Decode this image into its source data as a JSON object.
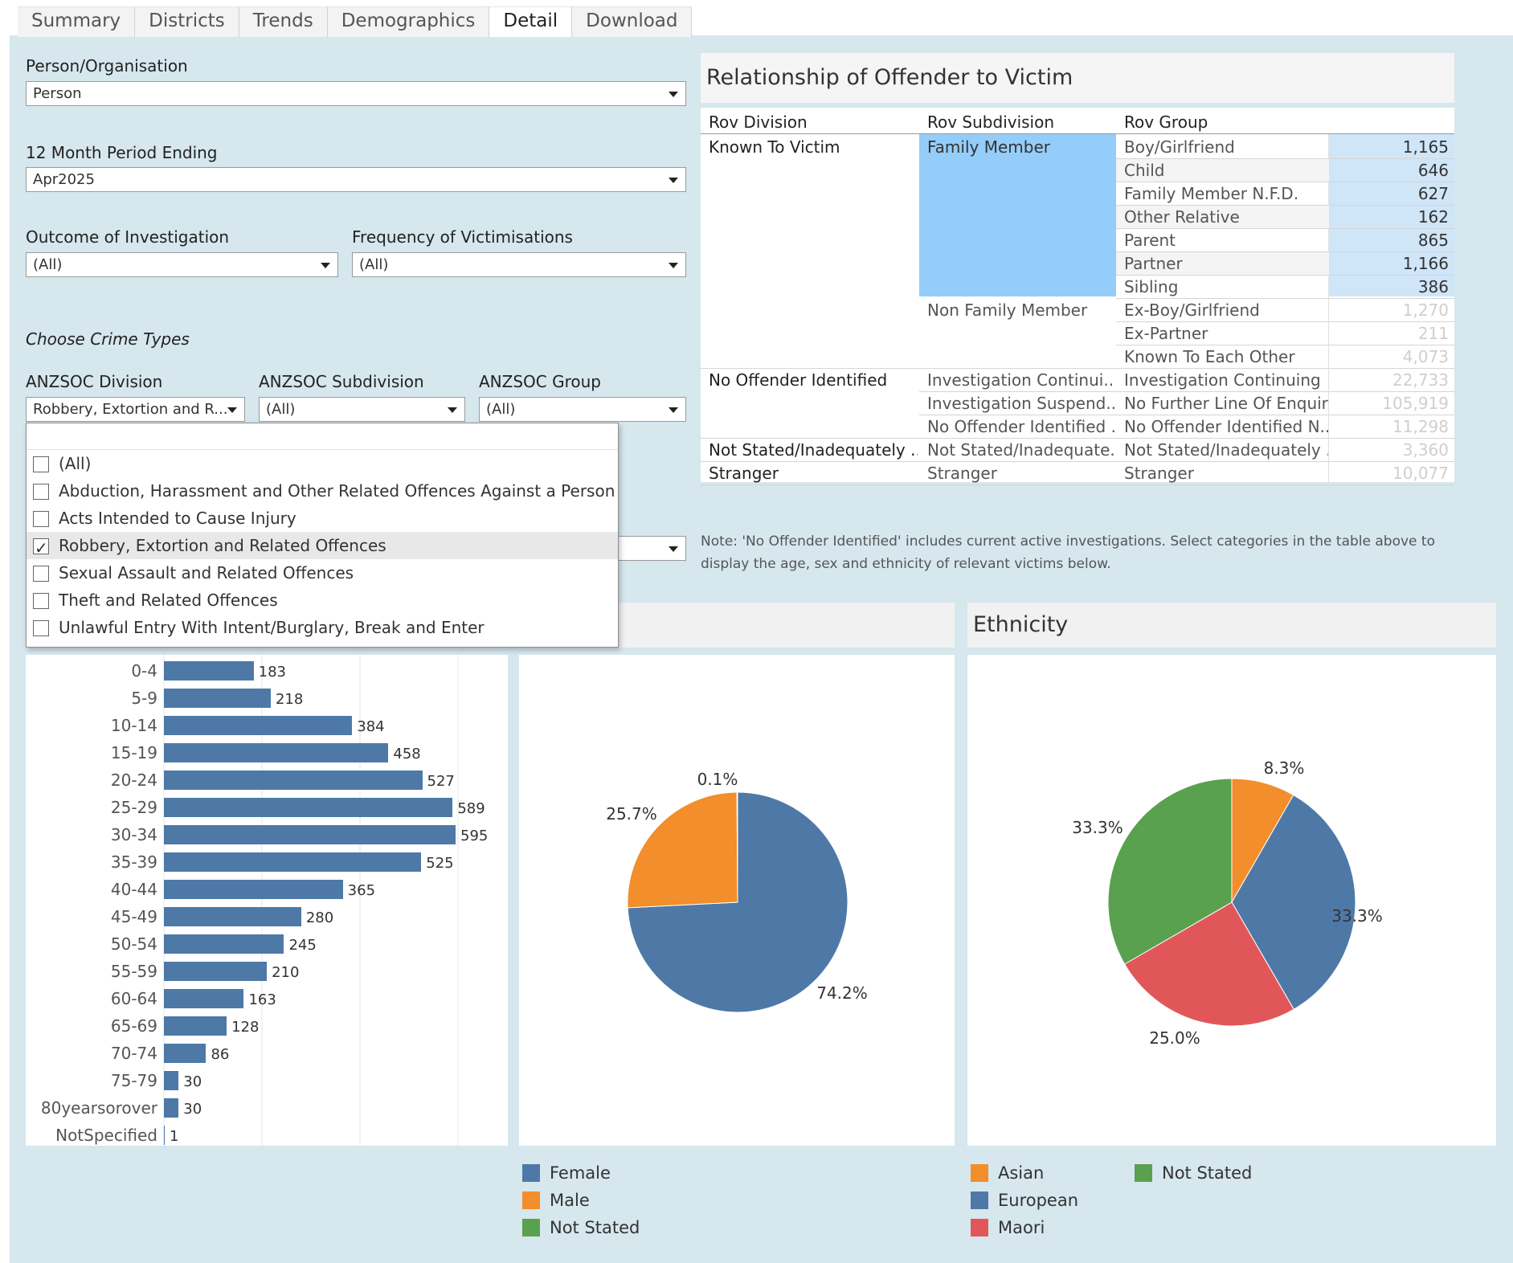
{
  "tabs": [
    "Summary",
    "Districts",
    "Trends",
    "Demographics",
    "Detail",
    "Download"
  ],
  "active_tab": "Detail",
  "filters": {
    "person_org": {
      "label": "Person/Organisation",
      "value": "Person"
    },
    "period": {
      "label": "12 Month Period Ending",
      "value": "Apr2025"
    },
    "outcome": {
      "label": "Outcome of Investigation",
      "value": "(All)"
    },
    "frequency": {
      "label": "Frequency of Victimisations",
      "value": "(All)"
    },
    "choose_crime_types": "Choose Crime Types",
    "division": {
      "label": "ANZSOC Division",
      "value": "Robbery, Extortion and R..."
    },
    "subdivision": {
      "label": "ANZSOC Subdivision",
      "value": "(All)"
    },
    "group": {
      "label": "ANZSOC Group",
      "value": "(All)"
    }
  },
  "division_options": [
    {
      "label": "(All)",
      "checked": false
    },
    {
      "label": "Abduction, Harassment and Other Related Offences Against a Person",
      "checked": false
    },
    {
      "label": "Acts Intended to Cause Injury",
      "checked": false
    },
    {
      "label": "Robbery, Extortion and Related Offences",
      "checked": true
    },
    {
      "label": "Sexual Assault and Related Offences",
      "checked": false
    },
    {
      "label": "Theft and Related Offences",
      "checked": false
    },
    {
      "label": "Unlawful Entry With Intent/Burglary, Break and Enter",
      "checked": false
    }
  ],
  "rov": {
    "title": "Relationship of Offender to Victim",
    "headers": [
      "Rov Division",
      "Rov Subdivision",
      "Rov Group"
    ],
    "divisions": [
      "Known To Victim",
      "No Offender Identified",
      "Not Stated/Inadequately ..",
      "Stranger"
    ],
    "subdivisions": [
      "Family Member",
      "Non Family Member",
      "Investigation Continui..",
      "Investigation Suspend..",
      "No Offender Identified ..",
      "Not Stated/Inadequate..",
      "Stranger"
    ],
    "rows": [
      {
        "group": "Boy/Girlfriend",
        "value": "1,165"
      },
      {
        "group": "Child",
        "value": "646"
      },
      {
        "group": "Family Member N.F.D.",
        "value": "627"
      },
      {
        "group": "Other Relative",
        "value": "162"
      },
      {
        "group": "Parent",
        "value": "865"
      },
      {
        "group": "Partner",
        "value": "1,166"
      },
      {
        "group": "Sibling",
        "value": "386"
      },
      {
        "group": "Ex-Boy/Girlfriend",
        "value": "1,270"
      },
      {
        "group": "Ex-Partner",
        "value": "211"
      },
      {
        "group": "Known To Each Other",
        "value": "4,073"
      },
      {
        "group": "Investigation Continuing",
        "value": "22,733"
      },
      {
        "group": "No Further Line Of Enquiry",
        "value": "105,919"
      },
      {
        "group": "No Offender Identified N...",
        "value": "11,298"
      },
      {
        "group": "Not Stated/Inadequately ..",
        "value": "3,360"
      },
      {
        "group": "Stranger",
        "value": "10,077"
      }
    ]
  },
  "note": "Note: 'No Offender Identified' includes current active investigations. Select categories in the  table above to display the age, sex and ethnicity of relevant victims below.",
  "ethnicity_title": "Ethnicity",
  "colors": {
    "blue": "#4e79a7",
    "orange": "#f28e2b",
    "green": "#59a14f",
    "red": "#e15759"
  },
  "chart_data": [
    {
      "type": "bar",
      "categories": [
        "0-4",
        "5-9",
        "10-14",
        "15-19",
        "20-24",
        "25-29",
        "30-34",
        "35-39",
        "40-44",
        "45-49",
        "50-54",
        "55-59",
        "60-64",
        "65-69",
        "70-74",
        "75-79",
        "80yearsorover",
        "NotSpecified"
      ],
      "values": [
        183,
        218,
        384,
        458,
        527,
        589,
        595,
        525,
        365,
        280,
        245,
        210,
        163,
        128,
        86,
        30,
        30,
        1
      ],
      "orientation": "horizontal",
      "grid": true
    },
    {
      "type": "pie",
      "labels": [
        "Female",
        "Male",
        "Not Stated"
      ],
      "values": [
        74.2,
        25.7,
        0.1
      ],
      "value_labels": [
        "74.2%",
        "25.7%",
        "0.1%"
      ],
      "colors": [
        "#4e79a7",
        "#f28e2b",
        "#59a14f"
      ],
      "legend": [
        "Female",
        "Male",
        "Not Stated"
      ]
    },
    {
      "type": "pie",
      "title": "Ethnicity",
      "labels": [
        "Asian",
        "European",
        "Maori",
        "Not Stated"
      ],
      "values": [
        8.3,
        33.3,
        25.0,
        33.3
      ],
      "value_labels": [
        "8.3%",
        "33.3%",
        "25.0%",
        "33.3%"
      ],
      "colors": [
        "#f28e2b",
        "#4e79a7",
        "#e15759",
        "#59a14f"
      ],
      "legend": [
        "Asian",
        "Not Stated",
        "European",
        "Maori"
      ]
    }
  ]
}
